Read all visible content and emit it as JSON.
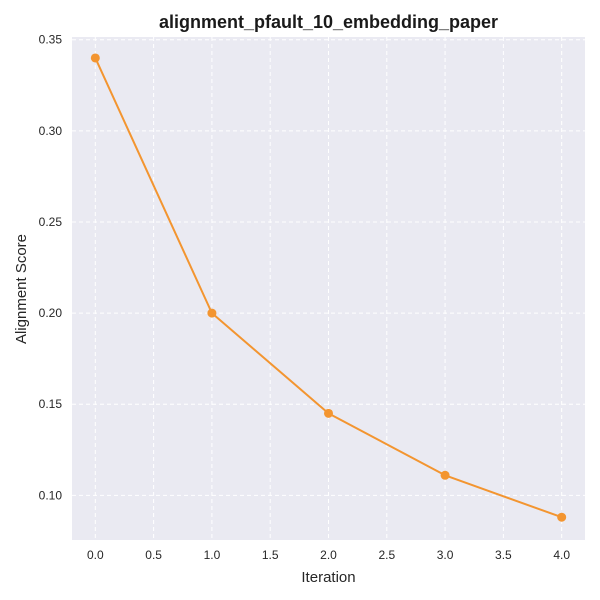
{
  "chart_data": {
    "type": "line",
    "title": "alignment_pfault_10_embedding_paper",
    "xlabel": "Iteration",
    "ylabel": "Alignment Score",
    "x": [
      0,
      1,
      2,
      3,
      4
    ],
    "series": [
      {
        "values": [
          0.34,
          0.2,
          0.145,
          0.111,
          0.088
        ]
      }
    ],
    "xlim": [
      -0.2,
      4.2
    ],
    "ylim": [
      0.0755,
      0.3515
    ],
    "xticks": [
      0.0,
      0.5,
      1.0,
      1.5,
      2.0,
      2.5,
      3.0,
      3.5,
      4.0
    ],
    "xtick_labels": [
      "0.0",
      "0.5",
      "1.0",
      "1.5",
      "2.0",
      "2.5",
      "3.0",
      "3.5",
      "4.0"
    ],
    "yticks": [
      0.1,
      0.15,
      0.2,
      0.25,
      0.3,
      0.35
    ],
    "ytick_labels": [
      "0.10",
      "0.15",
      "0.20",
      "0.25",
      "0.30",
      "0.35"
    ],
    "grid": true,
    "colors": {
      "line": "#f39530",
      "plot_background": "#eaeaf2",
      "grid": "#ffffff"
    }
  }
}
